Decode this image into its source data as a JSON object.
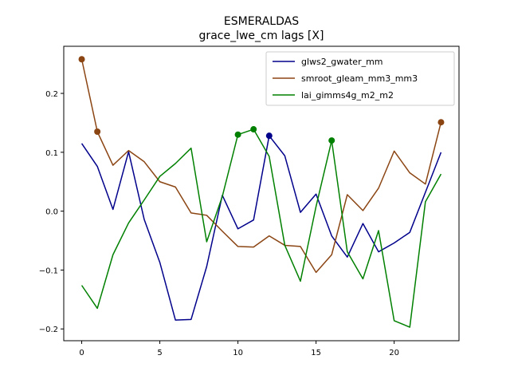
{
  "chart_data": {
    "type": "line",
    "title": "ESMERALDAS",
    "subtitle": "grace_lwe_cm lags [X]",
    "xlabel": "",
    "ylabel": "",
    "xlim": [
      -1.15,
      24.15
    ],
    "ylim": [
      -0.22,
      0.28
    ],
    "grid": false,
    "legend_position": "top-right",
    "x": [
      0,
      1,
      2,
      3,
      4,
      5,
      6,
      7,
      8,
      9,
      10,
      11,
      12,
      13,
      14,
      15,
      16,
      17,
      18,
      19,
      20,
      21,
      22,
      23
    ],
    "x_ticks": [
      0,
      5,
      10,
      15,
      20
    ],
    "x_tick_labels": [
      "0",
      "5",
      "10",
      "15",
      "20"
    ],
    "y_ticks": [
      -0.2,
      -0.1,
      0.0,
      0.1,
      0.2
    ],
    "y_tick_labels": [
      "−0.2",
      "−0.1",
      "0.0",
      "0.1",
      "0.2"
    ],
    "series": [
      {
        "name": "glws2_gwater_mm",
        "color": "#00008b",
        "values": [
          0.115,
          0.076,
          0.003,
          0.101,
          -0.014,
          -0.087,
          -0.185,
          -0.184,
          -0.094,
          0.027,
          -0.03,
          -0.015,
          0.128,
          0.094,
          -0.002,
          0.029,
          -0.042,
          -0.078,
          -0.021,
          -0.069,
          -0.054,
          -0.036,
          0.032,
          0.1
        ],
        "markers": [
          12
        ]
      },
      {
        "name": "smroot_gleam_mm3_mm3",
        "color": "#8b4513",
        "values": [
          0.258,
          0.135,
          0.078,
          0.103,
          0.084,
          0.05,
          0.041,
          -0.003,
          -0.007,
          -0.034,
          -0.06,
          -0.061,
          -0.042,
          -0.058,
          -0.06,
          -0.104,
          -0.074,
          0.028,
          0.001,
          0.039,
          0.102,
          0.065,
          0.046,
          0.151
        ],
        "markers": [
          0,
          1,
          23
        ]
      },
      {
        "name": "lai_gimms4g_m2_m2",
        "color": "#008000",
        "values": [
          -0.126,
          -0.165,
          -0.074,
          -0.02,
          0.019,
          0.059,
          0.081,
          0.107,
          -0.052,
          0.025,
          0.13,
          0.139,
          0.093,
          -0.058,
          -0.119,
          0.008,
          0.12,
          -0.069,
          -0.115,
          -0.033,
          -0.186,
          -0.197,
          0.016,
          0.063
        ],
        "markers": [
          10,
          11,
          16
        ]
      }
    ]
  }
}
